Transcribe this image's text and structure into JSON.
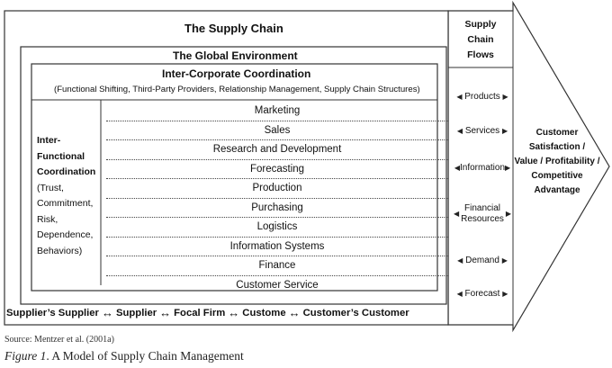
{
  "diagram": {
    "supply_chain_title": "The Supply Chain",
    "global_env_title": "The Global Environment",
    "inter_corporate": {
      "title": "Inter-Corporate Coordination",
      "subtitle": "(Functional Shifting, Third-Party Providers, Relationship Management, Supply Chain Structures)"
    },
    "inter_functional": {
      "title_lines": [
        "Inter-",
        "Functional",
        "Coordination"
      ],
      "detail_lines": [
        "(Trust,",
        "Commitment,",
        "Risk,",
        "Dependence,",
        "Behaviors)"
      ]
    },
    "functions": [
      "Marketing",
      "Sales",
      "Research and Development",
      "Forecasting",
      "Production",
      "Purchasing",
      "Logistics",
      "Information Systems",
      "Finance",
      "Customer Service"
    ],
    "flows_title_lines": [
      "Supply",
      "Chain",
      "Flows"
    ],
    "flows": [
      {
        "label_lines": [
          "Products"
        ]
      },
      {
        "label_lines": [
          "Services"
        ]
      },
      {
        "label_lines": [
          "Information"
        ]
      },
      {
        "label_lines": [
          "Financial",
          "Resources"
        ]
      },
      {
        "label_lines": [
          "Demand"
        ]
      },
      {
        "label_lines": [
          "Forecast"
        ]
      }
    ],
    "arrow_glyphs": {
      "left": "◀",
      "right": "▶",
      "double": "↔"
    },
    "chain": {
      "supplier_supplier": "Supplier’s Supplier",
      "supplier": "Supplier",
      "focal_firm": "Focal Firm",
      "customer": "Custome",
      "customer_customer": "Customer’s Customer"
    },
    "outcome_lines": [
      "Customer",
      "Satisfaction /",
      "Value / Profitability /",
      "Competitive",
      "Advantage"
    ]
  },
  "source": "Source: Mentzer et al. (2001a)",
  "figure": {
    "number": "Figure 1",
    "caption": ". A Model of Supply Chain Management"
  }
}
